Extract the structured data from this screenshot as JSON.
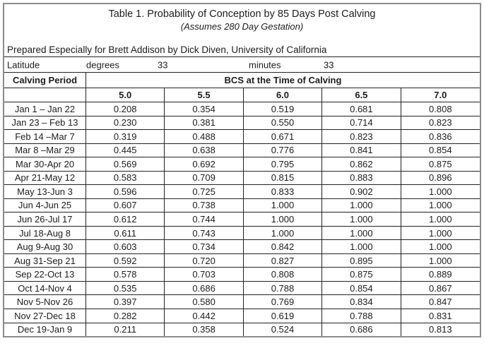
{
  "table": {
    "title": "Table 1. Probability of Conception by 85 Days Post Calving",
    "subtitle": "(Assumes 280 Day Gestation)",
    "prepared_line": "Prepared Especially for Brett Addison by Dick Diven, University of California",
    "latitude": {
      "label": "Latitude",
      "degrees_label": "degrees",
      "degrees_value": "33",
      "minutes_label": "minutes",
      "minutes_value": "33"
    },
    "header": {
      "row_label": "Calving Period",
      "group_label": "BCS at the Time of Calving",
      "bcs_columns": [
        "5.0",
        "5.5",
        "6.0",
        "6.5",
        "7.0"
      ]
    },
    "rows": [
      {
        "period": "Jan 1 – Jan 22",
        "values": [
          "0.208",
          "0.354",
          "0.519",
          "0.681",
          "0.808"
        ]
      },
      {
        "period": "Jan 23 – Feb 13",
        "values": [
          "0.230",
          "0.381",
          "0.550",
          "0.714",
          "0.823"
        ]
      },
      {
        "period": "Feb 14 –Mar 7",
        "values": [
          "0.319",
          "0.488",
          "0.671",
          "0.823",
          "0.836"
        ]
      },
      {
        "period": "Mar 8 –Mar 29",
        "values": [
          "0.445",
          "0.638",
          "0.776",
          "0.841",
          "0.854"
        ]
      },
      {
        "period": "Mar 30-Apr 20",
        "values": [
          "0.569",
          "0.692",
          "0.795",
          "0.862",
          "0.875"
        ]
      },
      {
        "period": "Apr 21-May 12",
        "values": [
          "0.583",
          "0.709",
          "0.815",
          "0.883",
          "0.896"
        ]
      },
      {
        "period": "May 13-Jun 3",
        "values": [
          "0.596",
          "0.725",
          "0.833",
          "0.902",
          "1.000"
        ]
      },
      {
        "period": "Jun 4-Jun 25",
        "values": [
          "0.607",
          "0.738",
          "1.000",
          "1.000",
          "1.000"
        ]
      },
      {
        "period": "Jun 26-Jul 17",
        "values": [
          "0.612",
          "0.744",
          "1.000",
          "1.000",
          "1.000"
        ]
      },
      {
        "period": "Jul 18-Aug 8",
        "values": [
          "0.611",
          "0.743",
          "1.000",
          "1.000",
          "1.000"
        ]
      },
      {
        "period": "Aug 9-Aug 30",
        "values": [
          "0.603",
          "0.734",
          "0.842",
          "1.000",
          "1.000"
        ]
      },
      {
        "period": "Aug 31-Sep 21",
        "values": [
          "0.592",
          "0.720",
          "0.827",
          "0.895",
          "1.000"
        ]
      },
      {
        "period": "Sep 22-Oct 13",
        "values": [
          "0.578",
          "0.703",
          "0.808",
          "0.875",
          "0.889"
        ]
      },
      {
        "period": "Oct 14-Nov 4",
        "values": [
          "0.535",
          "0.686",
          "0.788",
          "0.854",
          "0.867"
        ]
      },
      {
        "period": "Nov 5-Nov 26",
        "values": [
          "0.397",
          "0.580",
          "0.769",
          "0.834",
          "0.847"
        ]
      },
      {
        "period": "Nov 27-Dec 18",
        "values": [
          "0.282",
          "0.442",
          "0.619",
          "0.788",
          "0.831"
        ]
      },
      {
        "period": "Dec 19-Jan 9",
        "values": [
          "0.211",
          "0.358",
          "0.524",
          "0.686",
          "0.813"
        ]
      }
    ]
  },
  "colors": {
    "background": "#ffffff",
    "text": "#1c1c1c",
    "outer_border": "#8c8c8c",
    "inner_border": "#222222"
  }
}
